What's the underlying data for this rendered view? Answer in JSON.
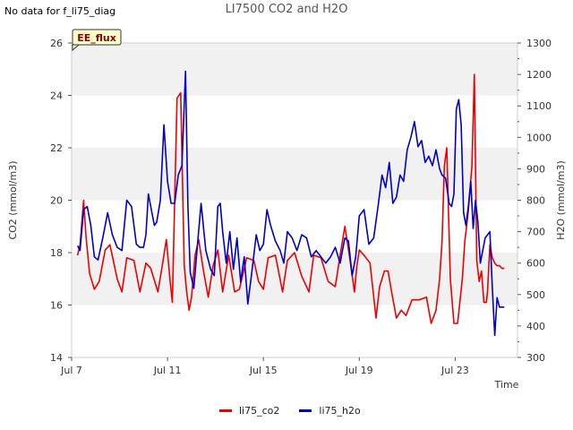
{
  "header": {
    "status_text": "No data for f_li75_diag",
    "title": "LI7500 CO2 and H2O"
  },
  "chart_data": {
    "type": "line",
    "title": "LI7500 CO2 and H2O",
    "annotation": "EE_flux",
    "xlabel": "Time",
    "ylabel_left": "CO2 (mmol/m3)",
    "ylabel_right": "H2O (mmol/m3)",
    "xlim": [
      7.0,
      25.6
    ],
    "ylim_left": [
      14,
      26
    ],
    "ylim_right": [
      300,
      1300
    ],
    "x_ticks": [
      7,
      11,
      15,
      19,
      23
    ],
    "x_tick_labels": [
      "Jul 7",
      "Jul 11",
      "Jul 15",
      "Jul 19",
      "Jul 23"
    ],
    "y_ticks_left": [
      14,
      16,
      18,
      20,
      22,
      24,
      26
    ],
    "y_ticks_right": [
      300,
      400,
      500,
      600,
      700,
      800,
      900,
      1000,
      1100,
      1200,
      1300
    ],
    "grid_bands": true,
    "legend_position": "bottom-center",
    "series": [
      {
        "name": "li75_co2",
        "axis": "left",
        "color": "#ee0000",
        "x": [
          7.25,
          7.35,
          7.5,
          7.6,
          7.75,
          7.95,
          8.15,
          8.4,
          8.6,
          8.9,
          9.1,
          9.3,
          9.6,
          9.85,
          10.1,
          10.3,
          10.6,
          10.8,
          10.95,
          11.1,
          11.2,
          11.3,
          11.4,
          11.55,
          11.7,
          11.8,
          11.9,
          12.0,
          12.15,
          12.3,
          12.5,
          12.7,
          12.9,
          13.1,
          13.3,
          13.55,
          13.8,
          14.0,
          14.3,
          14.6,
          14.8,
          15.0,
          15.2,
          15.5,
          15.8,
          16.0,
          16.3,
          16.6,
          16.9,
          17.1,
          17.4,
          17.7,
          18.0,
          18.2,
          18.4,
          18.6,
          18.8,
          18.9,
          19.0,
          19.2,
          19.45,
          19.7,
          19.85,
          20.05,
          20.2,
          20.35,
          20.55,
          20.75,
          20.95,
          21.2,
          21.5,
          21.8,
          22.0,
          22.2,
          22.35,
          22.45,
          22.55,
          22.65,
          22.8,
          22.95,
          23.1,
          23.3,
          23.4,
          23.55,
          23.7,
          23.8,
          23.9,
          24.0,
          24.1,
          24.2,
          24.3,
          24.35,
          24.45,
          24.55,
          24.65,
          24.75,
          24.85,
          24.95,
          25.05
        ],
        "y": [
          17.9,
          18.3,
          20.0,
          18.6,
          17.2,
          16.6,
          16.9,
          18.1,
          18.3,
          17.0,
          16.5,
          17.8,
          17.7,
          16.5,
          17.6,
          17.4,
          16.5,
          17.6,
          18.5,
          17.0,
          16.1,
          20.0,
          23.9,
          24.1,
          17.5,
          16.5,
          15.8,
          16.3,
          17.9,
          18.5,
          17.3,
          16.3,
          17.5,
          18.1,
          16.5,
          17.9,
          16.5,
          16.6,
          17.8,
          17.7,
          16.9,
          16.6,
          17.8,
          17.9,
          16.5,
          17.7,
          18.0,
          17.1,
          16.5,
          17.9,
          17.8,
          16.9,
          16.7,
          17.9,
          19.0,
          17.8,
          16.5,
          17.5,
          18.1,
          17.9,
          17.6,
          15.5,
          16.7,
          17.3,
          17.3,
          16.5,
          15.5,
          15.8,
          15.6,
          16.2,
          16.2,
          16.3,
          15.3,
          15.8,
          17.0,
          18.4,
          21.3,
          22.0,
          17.0,
          15.3,
          15.3,
          17.0,
          18.4,
          19.6,
          21.3,
          24.8,
          17.7,
          16.9,
          17.3,
          16.1,
          16.1,
          16.5,
          18.3,
          17.8,
          17.6,
          17.5,
          17.5,
          17.4,
          17.4
        ]
      },
      {
        "name": "li75_h2o",
        "axis": "right",
        "color": "#0000cc",
        "x": [
          7.25,
          7.35,
          7.5,
          7.65,
          7.8,
          7.95,
          8.1,
          8.3,
          8.5,
          8.7,
          8.9,
          9.1,
          9.3,
          9.5,
          9.7,
          9.85,
          10.0,
          10.1,
          10.2,
          10.35,
          10.45,
          10.55,
          10.7,
          10.85,
          11.0,
          11.15,
          11.3,
          11.45,
          11.6,
          11.75,
          11.85,
          11.95,
          12.1,
          12.25,
          12.4,
          12.6,
          12.8,
          12.95,
          13.1,
          13.2,
          13.3,
          13.45,
          13.6,
          13.75,
          13.9,
          14.05,
          14.2,
          14.35,
          14.5,
          14.7,
          14.85,
          15.0,
          15.15,
          15.3,
          15.5,
          15.7,
          15.85,
          16.0,
          16.2,
          16.4,
          16.6,
          16.8,
          17.0,
          17.2,
          17.4,
          17.6,
          17.8,
          18.0,
          18.2,
          18.4,
          18.55,
          18.7,
          18.85,
          19.0,
          19.2,
          19.4,
          19.6,
          19.8,
          19.95,
          20.1,
          20.25,
          20.4,
          20.55,
          20.7,
          20.85,
          21.0,
          21.15,
          21.3,
          21.45,
          21.6,
          21.75,
          21.9,
          22.05,
          22.2,
          22.35,
          22.45,
          22.6,
          22.75,
          22.85,
          22.95,
          23.05,
          23.15,
          23.25,
          23.35,
          23.45,
          23.55,
          23.65,
          23.75,
          23.85,
          23.95,
          24.05,
          24.15,
          24.25,
          24.35,
          24.45,
          24.55,
          24.65,
          24.75,
          24.85,
          24.95,
          25.05
        ],
        "y": [
          655,
          640,
          770,
          780,
          720,
          620,
          610,
          680,
          760,
          690,
          650,
          640,
          800,
          780,
          660,
          650,
          650,
          690,
          820,
          760,
          720,
          730,
          800,
          1040,
          860,
          790,
          790,
          880,
          910,
          1210,
          780,
          570,
          520,
          660,
          790,
          640,
          580,
          560,
          780,
          790,
          700,
          600,
          700,
          580,
          680,
          540,
          620,
          470,
          560,
          690,
          640,
          660,
          770,
          720,
          670,
          640,
          600,
          700,
          680,
          640,
          690,
          680,
          620,
          640,
          620,
          600,
          620,
          650,
          600,
          680,
          670,
          560,
          620,
          750,
          770,
          660,
          680,
          790,
          880,
          840,
          920,
          790,
          810,
          880,
          860,
          960,
          1000,
          1050,
          970,
          990,
          920,
          940,
          910,
          960,
          900,
          880,
          870,
          790,
          780,
          820,
          1090,
          1120,
          1040,
          760,
          720,
          780,
          860,
          710,
          800,
          730,
          600,
          640,
          680,
          690,
          700,
          520,
          370,
          490,
          460,
          460,
          460
        ]
      }
    ]
  }
}
